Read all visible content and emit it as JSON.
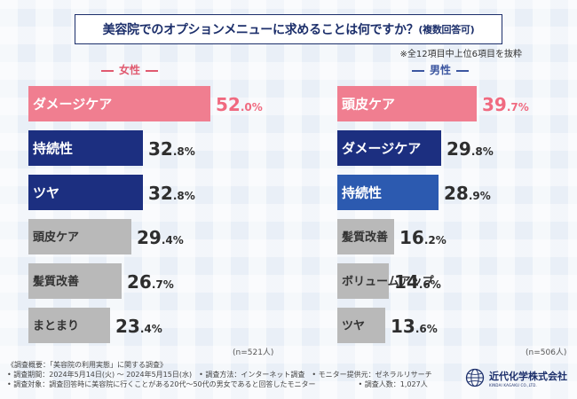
{
  "title": {
    "main": "美容院でのオプションメニューに求めることは何ですか？",
    "sub": "(複数回答可)"
  },
  "note": "※全12項目中上位6項目を抜粋",
  "colors": {
    "female_top": "#f07e90",
    "navy": "#1c2f80",
    "male_third": "#2c5ab0",
    "gray": "#b9b9b9",
    "value_top": "#f06a80",
    "value_default": "#2e2e2e",
    "label_white": "#ffffff",
    "label_dark": "#333333"
  },
  "chart_data": [
    {
      "type": "bar",
      "title": "女性",
      "categories": [
        "ダメージケア",
        "持続性",
        "ツヤ",
        "頭皮ケア",
        "髪質改善",
        "まとまり"
      ],
      "values": [
        52.0,
        32.8,
        32.8,
        29.4,
        26.7,
        23.4
      ],
      "value_labels": [
        {
          "big": "52",
          "small": ".0%"
        },
        {
          "big": "32",
          "small": ".8%"
        },
        {
          "big": "32",
          "small": ".8%"
        },
        {
          "big": "29",
          "small": ".4%"
        },
        {
          "big": "26",
          "small": ".7%"
        },
        {
          "big": "23",
          "small": ".4%"
        }
      ],
      "unit": "%",
      "n_label": "(n=521人)",
      "xlim": [
        0,
        52
      ]
    },
    {
      "type": "bar",
      "title": "男性",
      "categories": [
        "頭皮ケア",
        "ダメージケア",
        "持続性",
        "髪質改善",
        "ボリュームアップ",
        "ツヤ"
      ],
      "values": [
        39.7,
        29.8,
        28.9,
        16.2,
        14.6,
        13.6
      ],
      "value_labels": [
        {
          "big": "39",
          "small": ".7%"
        },
        {
          "big": "29",
          "small": ".8%"
        },
        {
          "big": "28",
          "small": ".9%"
        },
        {
          "big": "16",
          "small": ".2%"
        },
        {
          "big": "14",
          "small": ".6%"
        },
        {
          "big": "13",
          "small": ".6%"
        }
      ],
      "unit": "%",
      "n_label": "(n=506人)",
      "xlim": [
        0,
        52
      ]
    }
  ],
  "footer": {
    "line1": "《調査概要：「美容院の利用実態」に関する調査》",
    "line2": "• 調査期間：2024年5月14日(火) ～ 2024年5月15日(水)　• 調査方法：インターネット調査　• モニター提供元：ゼネラルリサーチ",
    "line3": "• 調査対象：調査回答時に美容院に行くことがある20代～50代の男女であると回答したモニター　　　　　　• 調査人数：1,027人"
  },
  "company": {
    "name": "近代化学株式会社",
    "name_en": "KINDAI KAGAKU CO.,LTD.",
    "logo_icon": "globe-icon"
  }
}
